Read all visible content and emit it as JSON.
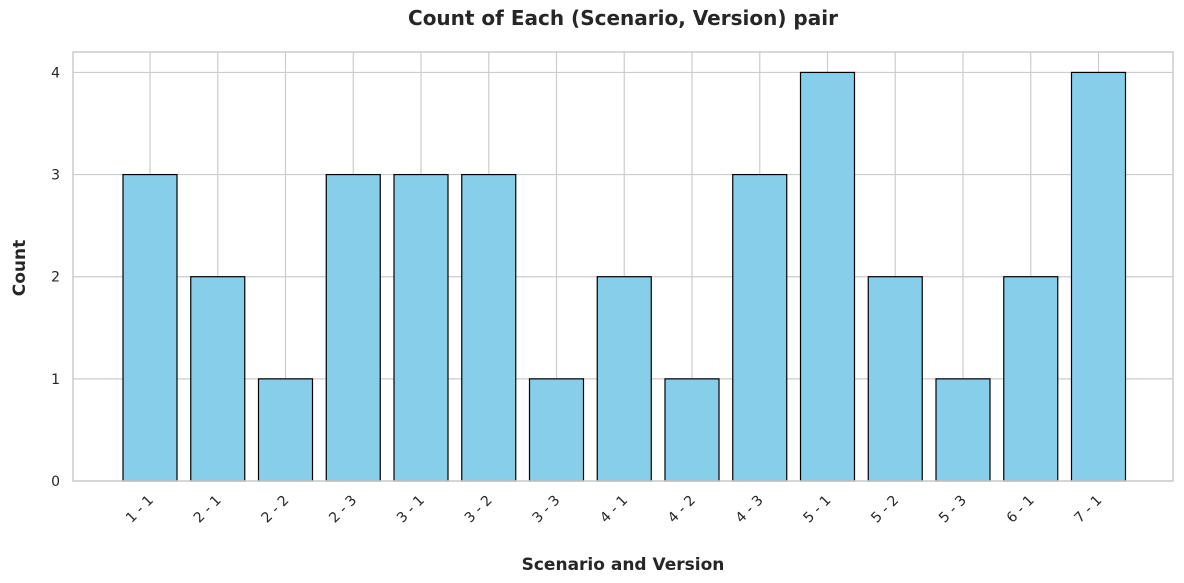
{
  "chart_data": {
    "type": "bar",
    "title": "Count of Each (Scenario, Version) pair",
    "xlabel": "Scenario and Version",
    "ylabel": "Count",
    "categories": [
      "1 - 1",
      "2 - 1",
      "2 - 2",
      "2 - 3",
      "3 - 1",
      "3 - 2",
      "3 - 3",
      "4 - 1",
      "4 - 2",
      "4 - 3",
      "5 - 1",
      "5 - 2",
      "5 - 3",
      "6 - 1",
      "7 - 1"
    ],
    "values": [
      3,
      2,
      1,
      3,
      3,
      3,
      1,
      2,
      1,
      3,
      4,
      2,
      1,
      2,
      4
    ],
    "ylim": [
      0,
      4.2
    ],
    "yticks": [
      0,
      1,
      2,
      3,
      4
    ],
    "grid": true,
    "colors": {
      "bar_fill": "#87ceeb",
      "bar_edge": "#000000",
      "grid": "#cccccc"
    }
  }
}
